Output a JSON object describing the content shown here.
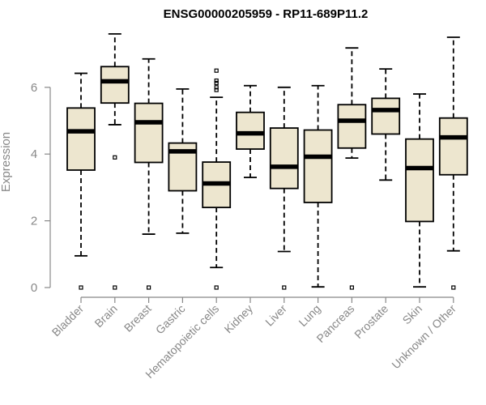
{
  "chart_data": {
    "type": "boxplot",
    "title": "ENSG00000205959 - RP11-689P11.2",
    "xlabel": "",
    "ylabel": "Expression",
    "ylim": [
      0,
      7.6
    ],
    "yticks": [
      0,
      2,
      4,
      6
    ],
    "box_color": "#ede6cf",
    "categories": [
      "Bladder",
      "Brain",
      "Breast",
      "Gastric",
      "Hematopoietic cells",
      "Kidney",
      "Liver",
      "Lung",
      "Pancreas",
      "Prostate",
      "Skin",
      "Unknown / Other"
    ],
    "boxes": [
      {
        "category": "Bladder",
        "whisker_low": 0.95,
        "q1": 3.52,
        "median": 4.68,
        "q3": 5.38,
        "whisker_high": 6.42,
        "outliers": [
          0.0
        ]
      },
      {
        "category": "Brain",
        "whisker_low": 4.88,
        "q1": 5.53,
        "median": 6.18,
        "q3": 6.62,
        "whisker_high": 7.6,
        "outliers": [
          3.9,
          0.0
        ]
      },
      {
        "category": "Breast",
        "whisker_low": 1.6,
        "q1": 3.75,
        "median": 4.95,
        "q3": 5.52,
        "whisker_high": 6.85,
        "outliers": [
          0.0
        ]
      },
      {
        "category": "Gastric",
        "whisker_low": 1.63,
        "q1": 2.9,
        "median": 4.08,
        "q3": 4.33,
        "whisker_high": 5.95,
        "outliers": []
      },
      {
        "category": "Hematopoietic cells",
        "whisker_low": 0.6,
        "q1": 2.4,
        "median": 3.12,
        "q3": 3.76,
        "whisker_high": 5.7,
        "outliers": [
          0.0,
          5.92,
          6.0,
          6.13,
          6.2,
          6.5
        ]
      },
      {
        "category": "Kidney",
        "whisker_low": 3.3,
        "q1": 4.15,
        "median": 4.62,
        "q3": 5.25,
        "whisker_high": 6.05,
        "outliers": []
      },
      {
        "category": "Liver",
        "whisker_low": 1.08,
        "q1": 2.97,
        "median": 3.62,
        "q3": 4.78,
        "whisker_high": 6.0,
        "outliers": [
          0.0
        ]
      },
      {
        "category": "Lung",
        "whisker_low": 0.02,
        "q1": 2.55,
        "median": 3.92,
        "q3": 4.72,
        "whisker_high": 6.05,
        "outliers": []
      },
      {
        "category": "Pancreas",
        "whisker_low": 3.88,
        "q1": 4.18,
        "median": 5.0,
        "q3": 5.48,
        "whisker_high": 7.18,
        "outliers": [
          0.0
        ]
      },
      {
        "category": "Prostate",
        "whisker_low": 3.22,
        "q1": 4.6,
        "median": 5.32,
        "q3": 5.67,
        "whisker_high": 6.55,
        "outliers": []
      },
      {
        "category": "Skin",
        "whisker_low": 0.02,
        "q1": 1.98,
        "median": 3.58,
        "q3": 4.45,
        "whisker_high": 5.8,
        "outliers": []
      },
      {
        "category": "Unknown / Other",
        "whisker_low": 1.1,
        "q1": 3.38,
        "median": 4.5,
        "q3": 5.08,
        "whisker_high": 7.5,
        "outliers": [
          0.0
        ]
      }
    ]
  }
}
